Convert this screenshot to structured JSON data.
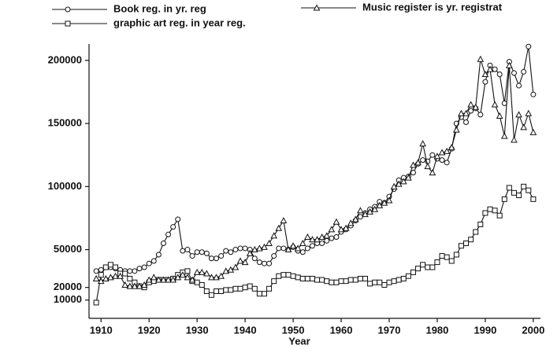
{
  "chart_data": {
    "type": "line",
    "xlabel": "Year",
    "x": [
      1909,
      1910,
      1911,
      1912,
      1913,
      1914,
      1915,
      1916,
      1917,
      1918,
      1919,
      1920,
      1921,
      1922,
      1923,
      1924,
      1925,
      1926,
      1927,
      1928,
      1929,
      1930,
      1931,
      1932,
      1933,
      1934,
      1935,
      1936,
      1937,
      1938,
      1939,
      1940,
      1941,
      1942,
      1943,
      1944,
      1945,
      1946,
      1947,
      1948,
      1949,
      1950,
      1951,
      1952,
      1953,
      1954,
      1955,
      1956,
      1957,
      1958,
      1959,
      1960,
      1961,
      1962,
      1963,
      1964,
      1965,
      1966,
      1967,
      1968,
      1969,
      1970,
      1971,
      1972,
      1973,
      1974,
      1975,
      1976,
      1977,
      1978,
      1979,
      1980,
      1981,
      1982,
      1983,
      1984,
      1985,
      1986,
      1987,
      1988,
      1989,
      1990,
      1991,
      1992,
      1993,
      1994,
      1995,
      1996,
      1997,
      1998,
      1999,
      2000
    ],
    "series": [
      {
        "name": "Book reg. in yr. reg",
        "color": "#111111",
        "marker": "circle",
        "values": [
          33000,
          34000,
          36000,
          36000,
          35000,
          34000,
          33000,
          33000,
          33000,
          35000,
          36000,
          39000,
          41000,
          46000,
          55000,
          62000,
          68000,
          74000,
          49000,
          50000,
          45000,
          48000,
          48000,
          47000,
          43000,
          43000,
          45000,
          49000,
          48000,
          50000,
          51000,
          51000,
          50000,
          43000,
          40000,
          39000,
          39000,
          45000,
          51000,
          51000,
          50000,
          52000,
          49000,
          48000,
          51000,
          53000,
          55000,
          55000,
          57000,
          59000,
          60000,
          64000,
          66000,
          69000,
          73000,
          76000,
          79000,
          82000,
          84000,
          88000,
          87000,
          92000,
          98000,
          105000,
          107000,
          108000,
          111000,
          118000,
          121000,
          120000,
          125000,
          122000,
          121000,
          119000,
          130000,
          150000,
          155000,
          151000,
          160000,
          162000,
          157000,
          183000,
          196000,
          193000,
          189000,
          166000,
          199000,
          190000,
          180000,
          191000,
          211000,
          173000
        ]
      },
      {
        "name": "graphic art reg. in year reg.",
        "color": "#111111",
        "marker": "square",
        "values": [
          8000,
          30000,
          36000,
          38000,
          36000,
          31000,
          31000,
          27000,
          24000,
          21000,
          20000,
          24000,
          25000,
          26000,
          26000,
          26000,
          27000,
          30000,
          32000,
          33000,
          25000,
          24000,
          22000,
          17000,
          14000,
          17000,
          17000,
          18000,
          18000,
          19000,
          19000,
          20000,
          21000,
          19000,
          15000,
          15000,
          19000,
          25000,
          29000,
          30000,
          30000,
          29000,
          28000,
          27000,
          27000,
          27000,
          26000,
          26000,
          25000,
          24000,
          24000,
          25000,
          25000,
          26000,
          26000,
          27000,
          27000,
          23000,
          24000,
          24000,
          22000,
          24000,
          25000,
          26000,
          27000,
          29000,
          32000,
          35000,
          38000,
          36000,
          36000,
          40000,
          45000,
          44000,
          41000,
          46000,
          53000,
          55000,
          58000,
          64000,
          70000,
          79000,
          82000,
          81000,
          77000,
          90000,
          99000,
          95000,
          93000,
          100000,
          97000,
          90000
        ]
      },
      {
        "name": "Music register is yr. registrat",
        "color": "#111111",
        "marker": "triangle",
        "values": [
          27000,
          25000,
          27000,
          28000,
          29000,
          29000,
          22000,
          21000,
          21000,
          21000,
          22000,
          26000,
          28000,
          26000,
          26000,
          26000,
          26000,
          28000,
          30000,
          28000,
          26000,
          32000,
          32000,
          31000,
          28000,
          28000,
          29000,
          33000,
          34000,
          36000,
          41000,
          40000,
          47000,
          50000,
          51000,
          52000,
          55000,
          61000,
          67000,
          73000,
          50000,
          53000,
          51000,
          55000,
          60000,
          58000,
          58000,
          60000,
          61000,
          66000,
          72000,
          66000,
          67000,
          71000,
          74000,
          81000,
          78000,
          80000,
          82000,
          85000,
          87000,
          89000,
          100000,
          102000,
          104000,
          107000,
          117000,
          119000,
          134000,
          116000,
          111000,
          124000,
          127000,
          128000,
          131000,
          145000,
          158000,
          158000,
          165000,
          163000,
          201000,
          189000,
          193000,
          165000,
          156000,
          140000,
          196000,
          137000,
          157000,
          147000,
          158000,
          143000
        ]
      }
    ],
    "xlim": [
      1907.5,
      2001.5
    ],
    "xticks": [
      1910,
      1920,
      1930,
      1940,
      1950,
      1960,
      1970,
      1980,
      1990,
      2000
    ],
    "ylim": [
      -4500,
      213000
    ],
    "yticks": [
      10000,
      20000,
      50000,
      100000,
      150000,
      200000
    ],
    "grid": false
  }
}
